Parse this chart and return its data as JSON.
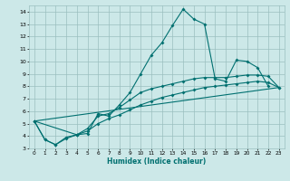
{
  "xlabel": "Humidex (Indice chaleur)",
  "xlim": [
    -0.5,
    23.5
  ],
  "ylim": [
    3,
    14.5
  ],
  "xticks": [
    0,
    1,
    2,
    3,
    4,
    5,
    6,
    7,
    8,
    9,
    10,
    11,
    12,
    13,
    14,
    15,
    16,
    17,
    18,
    19,
    20,
    21,
    22,
    23
  ],
  "yticks": [
    3,
    4,
    5,
    6,
    7,
    8,
    9,
    10,
    11,
    12,
    13,
    14
  ],
  "bg_color": "#cce8e8",
  "grid_color": "#9bbfbf",
  "line_color": "#007070",
  "curve1": {
    "x": [
      0,
      1,
      2,
      3,
      4,
      5,
      6,
      7,
      8,
      9,
      10,
      11,
      12,
      13,
      14,
      15,
      16,
      17,
      18,
      19,
      20,
      21,
      22
    ],
    "y": [
      5.2,
      3.7,
      3.3,
      3.8,
      4.1,
      4.2,
      5.8,
      5.6,
      6.5,
      7.5,
      9.0,
      10.5,
      11.5,
      12.9,
      14.2,
      13.4,
      13.0,
      8.6,
      8.4,
      10.1,
      10.0,
      9.5,
      8.0
    ]
  },
  "curve2": {
    "x": [
      0,
      1,
      2,
      3,
      4,
      5,
      6,
      7,
      8,
      9,
      10,
      11,
      12,
      13,
      14,
      15,
      16,
      17,
      18,
      19,
      20,
      21,
      22,
      23
    ],
    "y": [
      5.2,
      3.7,
      3.3,
      3.9,
      4.1,
      4.4,
      5.0,
      5.4,
      5.7,
      6.1,
      6.5,
      6.8,
      7.1,
      7.3,
      7.5,
      7.7,
      7.9,
      8.0,
      8.1,
      8.2,
      8.3,
      8.4,
      8.3,
      7.9
    ]
  },
  "curve3": {
    "x": [
      0,
      4,
      5,
      6,
      7,
      8,
      9,
      10,
      11,
      12,
      13,
      14,
      15,
      16,
      17,
      18,
      19,
      20,
      21,
      22,
      23
    ],
    "y": [
      5.2,
      4.1,
      4.6,
      5.6,
      5.8,
      6.3,
      6.9,
      7.5,
      7.8,
      8.0,
      8.2,
      8.4,
      8.6,
      8.7,
      8.7,
      8.7,
      8.8,
      8.9,
      8.9,
      8.8,
      7.9
    ]
  },
  "curve4": {
    "x": [
      0,
      23
    ],
    "y": [
      5.2,
      7.9
    ]
  }
}
